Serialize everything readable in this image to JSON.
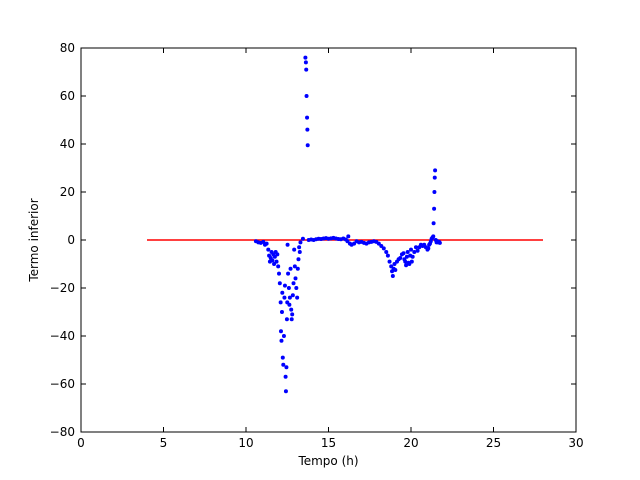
{
  "chart_data": {
    "type": "scatter",
    "title": "",
    "xlabel": "Tempo (h)",
    "ylabel": "Termo inferior",
    "xlim": [
      0,
      30
    ],
    "ylim": [
      -80,
      80
    ],
    "x_ticks": [
      0,
      5,
      10,
      15,
      20,
      25,
      30
    ],
    "y_ticks": [
      -80,
      -60,
      -40,
      -20,
      0,
      20,
      40,
      60,
      80
    ],
    "grid": false,
    "colors": {
      "points": "#0000ff",
      "reference_line": "#ff0000"
    },
    "reference_line": {
      "x": [
        4,
        28
      ],
      "y": [
        0,
        0
      ]
    },
    "series": [
      {
        "points": [
          [
            10.6,
            -0.5
          ],
          [
            10.75,
            -1.0
          ],
          [
            10.9,
            -1.2
          ],
          [
            11.05,
            -0.8
          ],
          [
            11.15,
            -2.0
          ],
          [
            11.25,
            -1.5
          ],
          [
            11.35,
            -4.0
          ],
          [
            11.4,
            -6.5
          ],
          [
            11.45,
            -9.0
          ],
          [
            11.5,
            -7.5
          ],
          [
            11.55,
            -5.0
          ],
          [
            11.6,
            -8.5
          ],
          [
            11.65,
            -6.0
          ],
          [
            11.7,
            -10.0
          ],
          [
            11.75,
            -7.0
          ],
          [
            11.8,
            -5.0
          ],
          [
            11.85,
            -9.0
          ],
          [
            11.9,
            -6.0
          ],
          [
            11.95,
            -11.0
          ],
          [
            12.0,
            -14.0
          ],
          [
            12.05,
            -18.0
          ],
          [
            12.1,
            -26.0
          ],
          [
            12.12,
            -38.0
          ],
          [
            12.15,
            -42.0
          ],
          [
            12.18,
            -30.0
          ],
          [
            12.2,
            -22.0
          ],
          [
            12.23,
            -49.0
          ],
          [
            12.26,
            -52.0
          ],
          [
            12.3,
            -40.0
          ],
          [
            12.33,
            -24.0
          ],
          [
            12.36,
            -19.0
          ],
          [
            12.4,
            -57.0
          ],
          [
            12.42,
            -63.0
          ],
          [
            12.45,
            -53.0
          ],
          [
            12.48,
            -33.0
          ],
          [
            12.5,
            -26.0
          ],
          [
            12.52,
            -2.0
          ],
          [
            12.55,
            -14.0
          ],
          [
            12.6,
            -20.0
          ],
          [
            12.63,
            -27.0
          ],
          [
            12.66,
            -24.0
          ],
          [
            12.7,
            -12.0
          ],
          [
            12.74,
            -29.0
          ],
          [
            12.77,
            -33.0
          ],
          [
            12.8,
            -31.0
          ],
          [
            12.84,
            -23.0
          ],
          [
            12.88,
            -18.0
          ],
          [
            12.92,
            -4.0
          ],
          [
            12.96,
            -11.0
          ],
          [
            13.0,
            -16.0
          ],
          [
            13.05,
            -20.0
          ],
          [
            13.1,
            -24.0
          ],
          [
            13.14,
            -12.0
          ],
          [
            13.18,
            -8.0
          ],
          [
            13.22,
            -3.0
          ],
          [
            13.26,
            -5.0
          ],
          [
            13.3,
            -1.0
          ],
          [
            13.45,
            0.5
          ],
          [
            13.6,
            76.0
          ],
          [
            13.63,
            74.0
          ],
          [
            13.65,
            71.0
          ],
          [
            13.67,
            60.0
          ],
          [
            13.7,
            51.0
          ],
          [
            13.72,
            46.0
          ],
          [
            13.74,
            39.5
          ],
          [
            13.8,
            0.0
          ],
          [
            13.95,
            0.2
          ],
          [
            14.1,
            0.0
          ],
          [
            14.25,
            0.3
          ],
          [
            14.4,
            0.5
          ],
          [
            14.55,
            0.4
          ],
          [
            14.7,
            0.6
          ],
          [
            14.85,
            0.8
          ],
          [
            15.0,
            0.5
          ],
          [
            15.15,
            0.7
          ],
          [
            15.3,
            0.9
          ],
          [
            15.45,
            0.6
          ],
          [
            15.6,
            0.4
          ],
          [
            15.75,
            0.3
          ],
          [
            15.9,
            0.6
          ],
          [
            16.05,
            0.2
          ],
          [
            16.15,
            -0.5
          ],
          [
            16.2,
            1.5
          ],
          [
            16.3,
            -1.5
          ],
          [
            16.4,
            -2.0
          ],
          [
            16.55,
            -1.5
          ],
          [
            16.7,
            -0.5
          ],
          [
            16.85,
            -1.0
          ],
          [
            17.0,
            -0.8
          ],
          [
            17.15,
            -1.2
          ],
          [
            17.3,
            -1.5
          ],
          [
            17.45,
            -1.0
          ],
          [
            17.6,
            -0.8
          ],
          [
            17.75,
            -0.5
          ],
          [
            17.9,
            -0.8
          ],
          [
            18.05,
            -1.5
          ],
          [
            18.2,
            -2.5
          ],
          [
            18.35,
            -3.5
          ],
          [
            18.5,
            -5.0
          ],
          [
            18.6,
            -6.5
          ],
          [
            18.7,
            -9.0
          ],
          [
            18.8,
            -11.0
          ],
          [
            18.85,
            -13.0
          ],
          [
            18.9,
            -15.0
          ],
          [
            18.95,
            -12.0
          ],
          [
            19.0,
            -10.0
          ],
          [
            19.05,
            -12.5
          ],
          [
            19.15,
            -9.0
          ],
          [
            19.25,
            -8.0
          ],
          [
            19.35,
            -7.5
          ],
          [
            19.45,
            -6.0
          ],
          [
            19.55,
            -5.5
          ],
          [
            19.6,
            -8.0
          ],
          [
            19.65,
            -9.0
          ],
          [
            19.7,
            -10.5
          ],
          [
            19.75,
            -7.0
          ],
          [
            19.8,
            -5.0
          ],
          [
            19.85,
            -9.5
          ],
          [
            19.9,
            -10.0
          ],
          [
            19.95,
            -6.5
          ],
          [
            20.0,
            -4.0
          ],
          [
            20.05,
            -9.0
          ],
          [
            20.1,
            -7.0
          ],
          [
            20.2,
            -5.0
          ],
          [
            20.3,
            -3.0
          ],
          [
            20.4,
            -4.5
          ],
          [
            20.5,
            -3.0
          ],
          [
            20.6,
            -2.0
          ],
          [
            20.7,
            -2.5
          ],
          [
            20.8,
            -2.0
          ],
          [
            20.9,
            -3.0
          ],
          [
            21.0,
            -4.0
          ],
          [
            21.05,
            -3.5
          ],
          [
            21.1,
            -2.0
          ],
          [
            21.15,
            -1.5
          ],
          [
            21.2,
            -0.5
          ],
          [
            21.25,
            0.5
          ],
          [
            21.3,
            1.0
          ],
          [
            21.35,
            1.5
          ],
          [
            21.37,
            7.0
          ],
          [
            21.4,
            13.0
          ],
          [
            21.42,
            20.0
          ],
          [
            21.44,
            26.0
          ],
          [
            21.46,
            29.0
          ],
          [
            21.5,
            0.0
          ],
          [
            21.55,
            -1.0
          ],
          [
            21.6,
            -0.5
          ],
          [
            21.65,
            -1.0
          ],
          [
            21.7,
            -0.8
          ],
          [
            21.75,
            -1.2
          ]
        ]
      }
    ]
  }
}
